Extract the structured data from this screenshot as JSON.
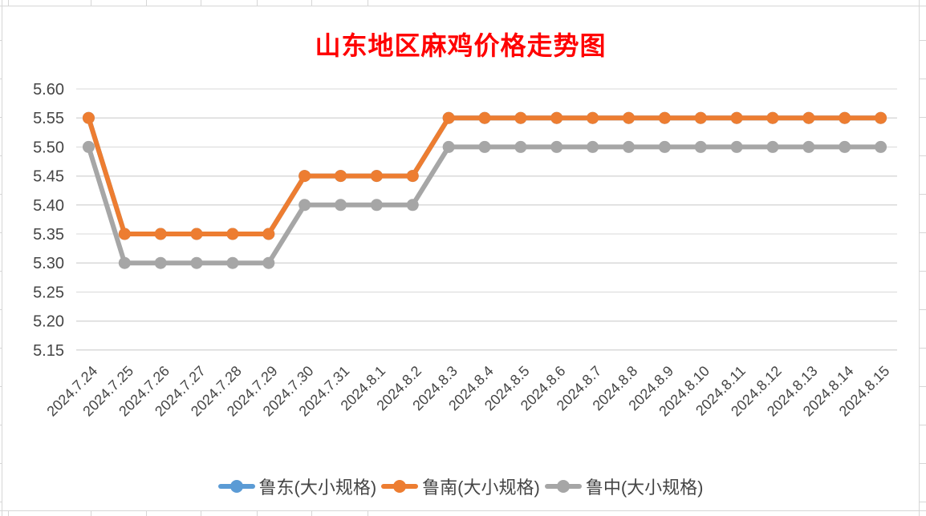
{
  "title": {
    "text": "山东地区麻鸡价格走势图",
    "color": "#FF0000"
  },
  "chart_data": {
    "type": "line",
    "title": "山东地区麻鸡价格走势图",
    "xlabel": "",
    "ylabel": "",
    "ylim": [
      5.15,
      5.6
    ],
    "ytick_step": 0.05,
    "ytick_labels": [
      "5.60",
      "5.55",
      "5.50",
      "5.45",
      "5.40",
      "5.35",
      "5.30",
      "5.25",
      "5.20",
      "5.15"
    ],
    "grid": "horizontal",
    "legend_position": "bottom",
    "categories": [
      "2024.7.24",
      "2024.7.25",
      "2024.7.26",
      "2024.7.27",
      "2024.7.28",
      "2024.7.29",
      "2024.7.30",
      "2024.7.31",
      "2024.8.1",
      "2024.8.2",
      "2024.8.3",
      "2024.8.4",
      "2024.8.5",
      "2024.8.6",
      "2024.8.7",
      "2024.8.8",
      "2024.8.9",
      "2024.8.10",
      "2024.8.11",
      "2024.8.12",
      "2024.8.13",
      "2024.8.14",
      "2024.8.15"
    ],
    "series": [
      {
        "name": "鲁东(大小规格)",
        "color": "#5B9BD5",
        "note": "line not visible in plot - completely covered by 鲁南(大小规格) series",
        "values": [
          5.55,
          5.35,
          5.35,
          5.35,
          5.35,
          5.35,
          5.45,
          5.45,
          5.45,
          5.45,
          5.55,
          5.55,
          5.55,
          5.55,
          5.55,
          5.55,
          5.55,
          5.55,
          5.55,
          5.55,
          5.55,
          5.55,
          5.55
        ]
      },
      {
        "name": "鲁南(大小规格)",
        "color": "#ED7D31",
        "values": [
          5.55,
          5.35,
          5.35,
          5.35,
          5.35,
          5.35,
          5.45,
          5.45,
          5.45,
          5.45,
          5.55,
          5.55,
          5.55,
          5.55,
          5.55,
          5.55,
          5.55,
          5.55,
          5.55,
          5.55,
          5.55,
          5.55,
          5.55
        ]
      },
      {
        "name": "鲁中(大小规格)",
        "color": "#A6A6A6",
        "values": [
          5.5,
          5.3,
          5.3,
          5.3,
          5.3,
          5.3,
          5.4,
          5.4,
          5.4,
          5.4,
          5.5,
          5.5,
          5.5,
          5.5,
          5.5,
          5.5,
          5.5,
          5.5,
          5.5,
          5.5,
          5.5,
          5.5,
          5.5
        ]
      }
    ]
  },
  "colors": {
    "gridline": "#D9D9D9",
    "axis_text": "#454545",
    "sheet_line": "#D6D6D6"
  }
}
